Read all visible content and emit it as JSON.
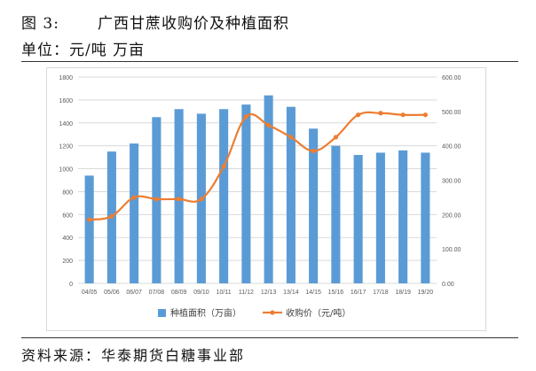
{
  "header": {
    "figure_label": "图 3:",
    "title": "广西甘蔗收购价及种植面积",
    "unit_line": "单位：元/吨    万亩"
  },
  "source": "资料来源：华泰期货白糖事业部",
  "chart_data": {
    "type": "bar",
    "categories": [
      "04/05",
      "05/06",
      "06/07",
      "07/08",
      "08/09",
      "09/10",
      "10/11",
      "11/12",
      "12/13",
      "13/14",
      "14/15",
      "15/16",
      "16/17",
      "17/18",
      "18/19",
      "19/20"
    ],
    "series": [
      {
        "name": "种植面积（万亩）",
        "type": "bar",
        "axis": "left",
        "color": "#5b9bd5",
        "values": [
          940,
          1150,
          1220,
          1450,
          1520,
          1480,
          1520,
          1560,
          1640,
          1540,
          1350,
          1200,
          1120,
          1140,
          1160,
          1140
        ]
      },
      {
        "name": "收购价（元/吨）",
        "type": "line",
        "axis": "right",
        "color": "#ed7d31",
        "values": [
          185,
          195,
          250,
          245,
          245,
          245,
          340,
          485,
          460,
          425,
          385,
          425,
          490,
          495,
          490,
          490
        ]
      }
    ],
    "left_axis": {
      "ylim": [
        0,
        1800
      ],
      "ticks": [
        "0",
        "200",
        "400",
        "600",
        "800",
        "1000",
        "1200",
        "1400",
        "1600",
        "1800"
      ]
    },
    "right_axis": {
      "ylim": [
        0,
        600
      ],
      "ticks": [
        "0.00",
        "100.00",
        "200.00",
        "300.00",
        "400.00",
        "500.00",
        "600.00"
      ]
    },
    "grid": "horizontal",
    "legend_position": "bottom"
  }
}
